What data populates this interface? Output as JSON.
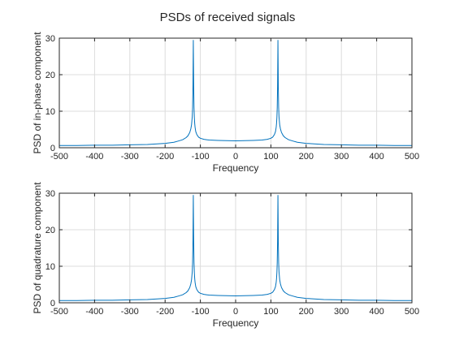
{
  "figure": {
    "title": "PSDs of received signals"
  },
  "chart_data": [
    {
      "type": "line",
      "title": "PSDs of received signals",
      "xlabel": "Frequency",
      "ylabel": "PSD of in-phase component",
      "xlim": [
        -500,
        500
      ],
      "ylim": [
        0,
        30
      ],
      "xticks": [
        -500,
        -400,
        -300,
        -200,
        -100,
        0,
        100,
        200,
        300,
        400,
        500
      ],
      "yticks": [
        0,
        10,
        20,
        30
      ],
      "grid": true,
      "color": "#0072BD",
      "series": [
        {
          "x": [
            -500,
            -450,
            -400,
            -350,
            -300,
            -250,
            -200,
            -175,
            -160,
            -150,
            -140,
            -135,
            -130,
            -127,
            -125,
            -123,
            -122,
            -121,
            -120,
            -119,
            -118,
            -117,
            -116,
            -115,
            -113,
            -110,
            -105,
            -100,
            -90,
            -75,
            -50,
            -25,
            0,
            25,
            50,
            75,
            90,
            100,
            105,
            110,
            113,
            115,
            116,
            117,
            118,
            119,
            120,
            121,
            122,
            123,
            125,
            127,
            130,
            135,
            140,
            150,
            160,
            175,
            200,
            250,
            300,
            350,
            400,
            450,
            500
          ],
          "y": [
            0.6,
            0.6,
            0.7,
            0.7,
            0.8,
            0.9,
            1.2,
            1.5,
            1.9,
            2.2,
            2.8,
            3.3,
            4.2,
            5.2,
            6.3,
            8.5,
            11,
            17,
            29.5,
            17,
            11,
            8.2,
            6.6,
            5.6,
            4.4,
            3.6,
            2.9,
            2.6,
            2.3,
            2.1,
            2.0,
            1.95,
            1.9,
            1.95,
            2.0,
            2.1,
            2.3,
            2.6,
            2.9,
            3.6,
            4.4,
            5.6,
            6.6,
            8.2,
            11,
            17,
            29.5,
            17,
            11,
            8.5,
            6.3,
            5.2,
            4.2,
            3.3,
            2.8,
            2.2,
            1.9,
            1.5,
            1.2,
            0.9,
            0.8,
            0.7,
            0.7,
            0.6,
            0.6
          ]
        }
      ]
    },
    {
      "type": "line",
      "title": "",
      "xlabel": "Frequency",
      "ylabel": "PSD of quadrature component",
      "xlim": [
        -500,
        500
      ],
      "ylim": [
        0,
        30
      ],
      "xticks": [
        -500,
        -400,
        -300,
        -200,
        -100,
        0,
        100,
        200,
        300,
        400,
        500
      ],
      "yticks": [
        0,
        10,
        20,
        30
      ],
      "grid": true,
      "color": "#0072BD",
      "series": [
        {
          "x": [
            -500,
            -450,
            -400,
            -350,
            -300,
            -250,
            -200,
            -175,
            -160,
            -150,
            -140,
            -135,
            -130,
            -127,
            -125,
            -123,
            -122,
            -121,
            -120,
            -119,
            -118,
            -117,
            -116,
            -115,
            -113,
            -110,
            -105,
            -100,
            -90,
            -75,
            -50,
            -25,
            0,
            25,
            50,
            75,
            90,
            100,
            105,
            110,
            113,
            115,
            116,
            117,
            118,
            119,
            120,
            121,
            122,
            123,
            125,
            127,
            130,
            135,
            140,
            150,
            160,
            175,
            200,
            250,
            300,
            350,
            400,
            450,
            500
          ],
          "y": [
            0.6,
            0.6,
            0.7,
            0.7,
            0.8,
            0.9,
            1.2,
            1.5,
            1.9,
            2.2,
            2.8,
            3.3,
            4.2,
            5.2,
            6.3,
            8.5,
            11,
            17,
            29.5,
            17,
            11,
            8.2,
            6.6,
            5.6,
            4.4,
            3.6,
            2.9,
            2.6,
            2.3,
            2.1,
            2.0,
            1.95,
            1.9,
            1.95,
            2.0,
            2.1,
            2.3,
            2.6,
            2.9,
            3.6,
            4.4,
            5.6,
            6.6,
            8.2,
            11,
            17,
            29.5,
            17,
            11,
            8.5,
            6.3,
            5.2,
            4.2,
            3.3,
            2.8,
            2.2,
            1.9,
            1.5,
            1.2,
            0.9,
            0.8,
            0.7,
            0.7,
            0.6,
            0.6
          ]
        }
      ]
    }
  ]
}
